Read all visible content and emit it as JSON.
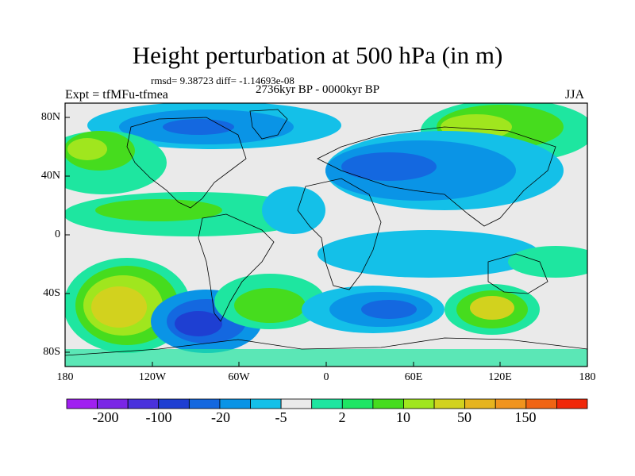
{
  "figure": {
    "title": "Height perturbation at 500 hPa (in m)",
    "stats": "rmsd= 9.38723 diff= -1.14693e-08",
    "period": "2736kyr BP - 0000kyr BP",
    "experiment": "Expt = tfMFu-tfmea",
    "season": "JJA"
  },
  "axes": {
    "lat_labels": [
      "80N",
      "40N",
      "0",
      "40S",
      "80S"
    ],
    "lon_labels": [
      "180",
      "120W",
      "60W",
      "0",
      "60E",
      "120E",
      "180"
    ]
  },
  "colorbar": {
    "colors": [
      "#a020f0",
      "#7a26e6",
      "#4a32dc",
      "#1e3fd2",
      "#1468e0",
      "#0a94e6",
      "#14c0e8",
      "#eaeaea",
      "#1ee6a0",
      "#1ee664",
      "#46dc1e",
      "#a0e61e",
      "#d2d21e",
      "#e6b41e",
      "#f0941e",
      "#f06414",
      "#f0280a"
    ],
    "labels": [
      "-200",
      "-100",
      "-20",
      "-5",
      "2",
      "10",
      "50",
      "150"
    ]
  }
}
